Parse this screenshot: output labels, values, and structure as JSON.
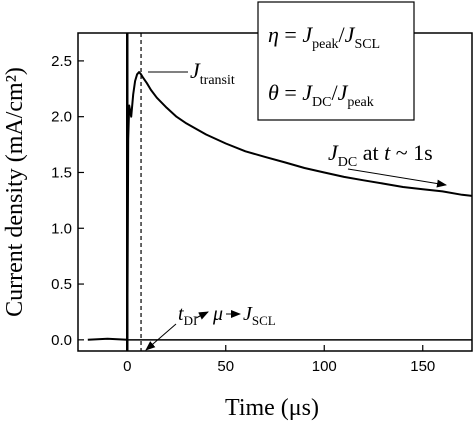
{
  "chart_data": {
    "type": "line",
    "xlabel": "Time (μs)",
    "ylabel": "Current density (mA/cm²)",
    "xlim": [
      -25,
      175
    ],
    "ylim": [
      -0.1,
      2.75
    ],
    "xticks": [
      0,
      50,
      100,
      150
    ],
    "yticks": [
      0.0,
      0.5,
      1.0,
      1.5,
      2.0,
      2.5
    ],
    "xtick_labels": [
      "0",
      "50",
      "100",
      "150"
    ],
    "ytick_labels": [
      "0.0",
      "0.5",
      "1.0",
      "1.5",
      "2.0",
      "2.5"
    ],
    "grid": false,
    "legend": "none",
    "series": [
      {
        "x": [
          -20,
          -10,
          0,
          0.5,
          1,
          2,
          3,
          4,
          5,
          6,
          7,
          8,
          10,
          12,
          15,
          20,
          25,
          30,
          40,
          50,
          60,
          70,
          80,
          90,
          100,
          110,
          120,
          130,
          140,
          150,
          160,
          170,
          175
        ],
        "y": [
          0.0,
          0.01,
          0.0,
          1.8,
          2.1,
          2.0,
          2.2,
          2.32,
          2.38,
          2.4,
          2.38,
          2.35,
          2.3,
          2.24,
          2.17,
          2.08,
          2.0,
          1.94,
          1.84,
          1.76,
          1.69,
          1.64,
          1.59,
          1.54,
          1.5,
          1.46,
          1.43,
          1.4,
          1.37,
          1.35,
          1.33,
          1.3,
          1.29
        ]
      }
    ],
    "reference_lines": {
      "zero_line_y": 0.0,
      "dashed_vertical_x": 7
    },
    "annotations": {
      "j_transit": {
        "main": "J",
        "sub": "transit"
      },
      "j_dc": {
        "main": "J",
        "sub": "DC",
        "suffix": " at ",
        "t": "t",
        "rest": " ~ 1s"
      },
      "tdi": {
        "t": "t",
        "sub": "DI",
        "mu": "μ",
        "j": "J",
        "jsub": "SCL"
      },
      "eta_box": {
        "eta": {
          "sym": "η",
          "eq": " = ",
          "j1": "J",
          "j1sub": "peak",
          "slash": "/",
          "j2": "J",
          "j2sub": "SCL"
        },
        "theta": {
          "sym": "θ",
          "eq": " = ",
          "j1": "J",
          "j1sub": "DC",
          "slash": "/",
          "j2": "J",
          "j2sub": "peak"
        }
      }
    }
  }
}
